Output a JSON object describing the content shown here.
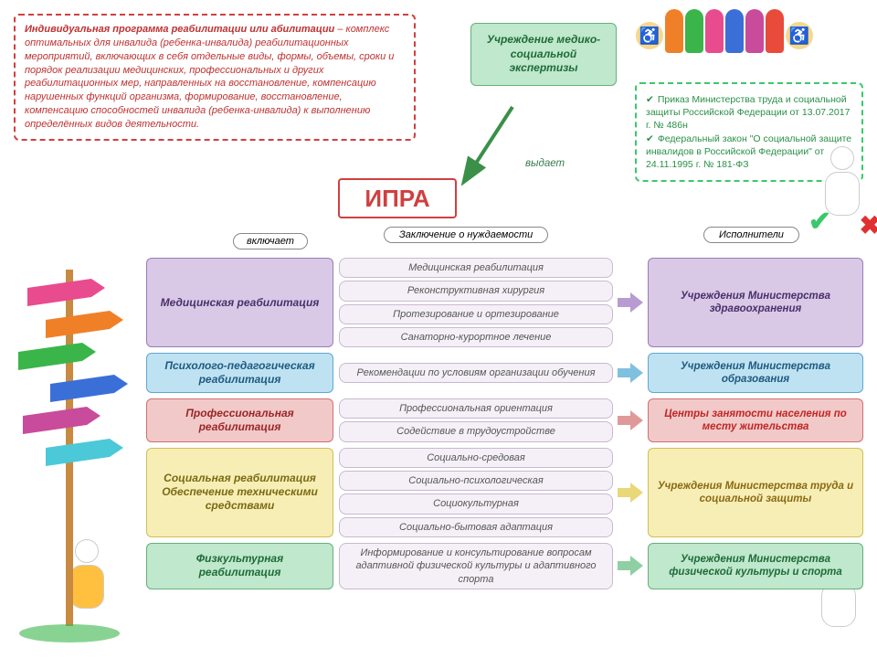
{
  "definition": {
    "title": "Индивидуальная программа реабилитации или абилитации",
    "text": " – комплекс оптимальных для инвалида (ребенка-инвалида) реабилитационных мероприятий, включающих в себя отдельные виды, формы, объемы, сроки и порядок реализации медицинских, профессиональных и других реабилитационных мер, направленных на восстановление, компенсацию нарушенных функций организма, формирование, восстановление, компенсацию способностей инвалида (ребенка-инвалида) к выполнению определённых видов деятельности."
  },
  "org": "Учреждение медико-социальной экспертизы",
  "issues": "выдает",
  "ipra": "ИПРА",
  "includes": "включает",
  "col2_header": "Заключение о нуждаемости",
  "col3_header": "Исполнители",
  "laws": {
    "item1": "Приказ Министерства труда и социальной защиты Российской Федерации от 13.07.2017 г. № 486н",
    "item2": "Федеральный закон \"О социальной защите инвалидов в Российской Федерации\" от 24.11.1995 г. № 181-ФЗ"
  },
  "rows": [
    {
      "category": "Медицинская реабилитация",
      "subs": [
        "Медицинская реабилитация",
        "Реконструктивная хирургия",
        "Протезирование и ортезирование",
        "Санаторно-курортное лечение"
      ],
      "executor": "Учреждения Министерства здравоохранения",
      "cat_bg": "#d9c9e6",
      "cat_border": "#9b7bb8",
      "cat_color": "#4a2f6b",
      "exec_bg": "#d9c9e6",
      "exec_border": "#9b7bb8",
      "exec_color": "#4a2f6b",
      "arrow_color": "#b89bd1"
    },
    {
      "category": "Психолого-педагогическая реабилитация",
      "subs": [
        "Рекомендации по условиям организации обучения"
      ],
      "executor": "Учреждения Министерства образования",
      "cat_bg": "#bfe2f2",
      "cat_border": "#5da8cf",
      "cat_color": "#1d5a80",
      "exec_bg": "#bfe2f2",
      "exec_border": "#5da8cf",
      "exec_color": "#1d5a80",
      "arrow_color": "#7fc0de"
    },
    {
      "category": "Профессиональная реабилитация",
      "subs": [
        "Профессиональная ориентация",
        "Содействие в трудоустройстве"
      ],
      "executor": "Центры занятости населения по месту жительства",
      "cat_bg": "#f2c9c9",
      "cat_border": "#d07070",
      "cat_color": "#9a2626",
      "exec_bg": "#f2c9c9",
      "exec_border": "#d07070",
      "exec_color": "#c02626",
      "arrow_color": "#e09999"
    },
    {
      "category": "Социальная реабилитация Обеспечение техническими средствами",
      "subs": [
        "Социально-средовая",
        "Социально-психологическая",
        "Социокультурная",
        "Социально-бытовая адаптация"
      ],
      "executor": "Учреждения Министерства труда и социальной защиты",
      "cat_bg": "#f7eeb6",
      "cat_border": "#d0be55",
      "cat_color": "#7a6a12",
      "exec_bg": "#f7eeb6",
      "exec_border": "#d0be55",
      "exec_color": "#8a6a12",
      "arrow_color": "#e8d878"
    },
    {
      "category": "Физкультурная реабилитация",
      "subs": [
        "Информирование и консультирование вопросам адаптивной физической культуры и адаптивного спорта"
      ],
      "executor": "Учреждения Министерства физической культуры и спорта",
      "cat_bg": "#bfe8cc",
      "cat_border": "#66b07a",
      "cat_color": "#1f6b38",
      "exec_bg": "#bfe8cc",
      "exec_border": "#66b07a",
      "exec_color": "#1f6b38",
      "arrow_color": "#8ed0a4"
    }
  ],
  "people_colors": [
    "#f08028",
    "#3ab54a",
    "#e94b8f",
    "#3a6fd8",
    "#c94b9b",
    "#e94b3a"
  ],
  "wheelchair_colors": [
    "#f0a828",
    "#f0a828"
  ]
}
